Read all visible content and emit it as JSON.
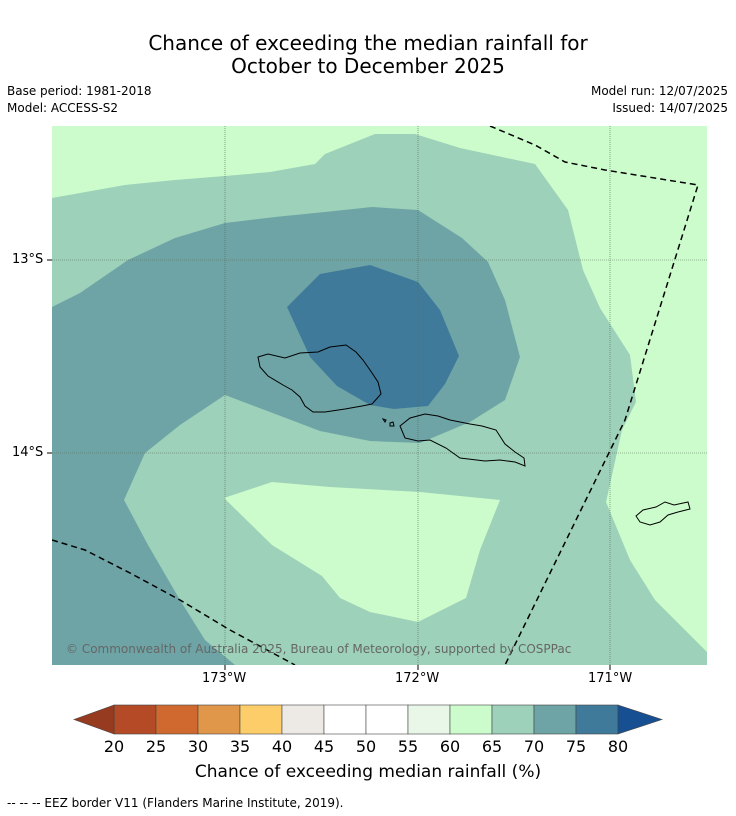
{
  "title_line1": "Chance of exceeding the median rainfall for",
  "title_line2": "October to December 2025",
  "base_period": "Base period: 1981-2018",
  "model": "Model: ACCESS-S2",
  "model_run": "Model run: 12/07/2025",
  "issued": "Issued: 14/07/2025",
  "copyright": "© Commonwealth of Australia 2025, Bureau of Meteorology, supported by COSPPac",
  "lon_labels": [
    "173°W",
    "172°W",
    "171°W"
  ],
  "lat_labels": [
    "13°S",
    "14°S"
  ],
  "colorbar": {
    "ticks": [
      "20",
      "25",
      "30",
      "35",
      "40",
      "45",
      "50",
      "55",
      "60",
      "65",
      "70",
      "75",
      "80"
    ],
    "colors": [
      "#b44b26",
      "#d0692f",
      "#e0974a",
      "#fdcd6a",
      "#ede9e5",
      "#ffffff",
      "#ffffff",
      "#e9f7e9",
      "#ccfccc",
      "#9dd1b9",
      "#6ea4a6",
      "#3f7a9a"
    ],
    "under_color": "#963a20",
    "over_color": "#165093",
    "label": "Chance of exceeding median rainfall (%)"
  },
  "legend_text": "--  --  -- EEZ border V11 (Flanders Marine Institute, 2019)."
}
